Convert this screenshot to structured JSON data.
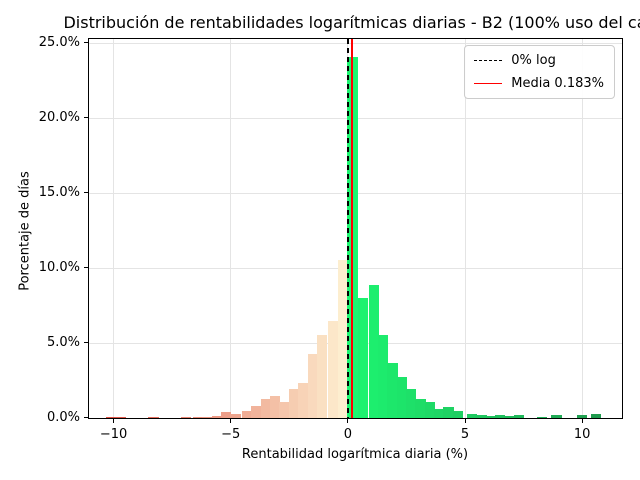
{
  "title": "Distribución de rentabilidades logarítmicas diarias - B2 (100% uso del ca",
  "chart_data": {
    "type": "bar",
    "title": "Distribución de rentabilidades logarítmicas diarias - B2 (100% uso del ca",
    "xlabel": "Rentabilidad logarítmica diaria (%)",
    "ylabel": "Porcentaje de días",
    "xlim": [
      -11.05,
      11.7
    ],
    "ylim": [
      0,
      25.3
    ],
    "grid": true,
    "grid_color": "#e4e4e4",
    "xticks": [
      {
        "v": -10,
        "label": "−10"
      },
      {
        "v": -5,
        "label": "−5"
      },
      {
        "v": 0,
        "label": "0"
      },
      {
        "v": 5,
        "label": "5"
      },
      {
        "v": 10,
        "label": "10"
      }
    ],
    "yticks": [
      {
        "v": 0,
        "label": "0.0%"
      },
      {
        "v": 5,
        "label": "5.0%"
      },
      {
        "v": 10,
        "label": "10.0%"
      },
      {
        "v": 15,
        "label": "15.0%"
      },
      {
        "v": 20,
        "label": "20.0%"
      },
      {
        "v": 25,
        "label": "25.0%"
      }
    ],
    "bin_width": 0.44,
    "bins": [
      {
        "x": -10.1,
        "h": 0.07,
        "color": "#dd5044"
      },
      {
        "x": -9.7,
        "h": 0.07,
        "color": "#df5749"
      },
      {
        "x": -8.3,
        "h": 0.07,
        "color": "#e36d5d"
      },
      {
        "x": -6.9,
        "h": 0.05,
        "color": "#e88371"
      },
      {
        "x": -6.4,
        "h": 0.05,
        "color": "#e98b78"
      },
      {
        "x": -6.0,
        "h": 0.1,
        "color": "#ea927d"
      },
      {
        "x": -5.6,
        "h": 0.13,
        "color": "#ec9883"
      },
      {
        "x": -5.2,
        "h": 0.4,
        "color": "#ed9e89"
      },
      {
        "x": -4.8,
        "h": 0.25,
        "color": "#eea58e"
      },
      {
        "x": -4.3,
        "h": 0.5,
        "color": "#f0ad95"
      },
      {
        "x": -3.9,
        "h": 0.8,
        "color": "#f1b39b"
      },
      {
        "x": -3.5,
        "h": 1.3,
        "color": "#f2baa1"
      },
      {
        "x": -3.1,
        "h": 1.5,
        "color": "#f4c0a6"
      },
      {
        "x": -2.7,
        "h": 1.1,
        "color": "#f5c6ac"
      },
      {
        "x": -2.3,
        "h": 1.95,
        "color": "#f6cdb1"
      },
      {
        "x": -1.9,
        "h": 2.35,
        "color": "#f8d3b7"
      },
      {
        "x": -1.5,
        "h": 4.3,
        "color": "#f9d9bd"
      },
      {
        "x": -1.1,
        "h": 5.55,
        "color": "#fae0c2"
      },
      {
        "x": -0.65,
        "h": 6.5,
        "color": "#fce7c9"
      },
      {
        "x": -0.2,
        "h": 10.55,
        "color": "#fdeecf"
      },
      {
        "x": 0.2,
        "h": 24.1,
        "color": "#1df671"
      },
      {
        "x": 0.65,
        "h": 8.0,
        "color": "#1df26f"
      },
      {
        "x": 1.1,
        "h": 8.9,
        "color": "#1dee6e"
      },
      {
        "x": 1.5,
        "h": 5.55,
        "color": "#1deb6d"
      },
      {
        "x": 1.9,
        "h": 3.7,
        "color": "#1de76b"
      },
      {
        "x": 2.3,
        "h": 2.75,
        "color": "#1de46a"
      },
      {
        "x": 2.7,
        "h": 1.95,
        "color": "#1ee069"
      },
      {
        "x": 3.1,
        "h": 1.25,
        "color": "#1edd67"
      },
      {
        "x": 3.5,
        "h": 1.05,
        "color": "#1ed966"
      },
      {
        "x": 3.9,
        "h": 0.6,
        "color": "#1ed665"
      },
      {
        "x": 4.3,
        "h": 0.72,
        "color": "#1ed263"
      },
      {
        "x": 4.7,
        "h": 0.45,
        "color": "#1ecf62"
      },
      {
        "x": 5.3,
        "h": 0.27,
        "color": "#1ec960"
      },
      {
        "x": 5.7,
        "h": 0.17,
        "color": "#1ec65e"
      },
      {
        "x": 6.1,
        "h": 0.16,
        "color": "#1ec25d"
      },
      {
        "x": 6.5,
        "h": 0.2,
        "color": "#1ebf5c"
      },
      {
        "x": 6.9,
        "h": 0.16,
        "color": "#1ebb5a"
      },
      {
        "x": 7.3,
        "h": 0.21,
        "color": "#1eb859"
      },
      {
        "x": 8.3,
        "h": 0.1,
        "color": "#1faf56"
      },
      {
        "x": 8.9,
        "h": 0.18,
        "color": "#1faa54"
      },
      {
        "x": 10.0,
        "h": 0.2,
        "color": "#1fa050"
      },
      {
        "x": 10.6,
        "h": 0.27,
        "color": "#1f9b4e"
      }
    ],
    "vlines": [
      {
        "x": 0,
        "style": "dashed",
        "color": "#000000"
      },
      {
        "x": 0.183,
        "style": "solid",
        "color": "#ff0000"
      }
    ],
    "legend": {
      "position": "top-right",
      "items": [
        {
          "label": "0% log",
          "style": "dashed",
          "color": "#000000"
        },
        {
          "label": "Media 0.183%",
          "style": "solid",
          "color": "#ff0000"
        }
      ]
    }
  }
}
